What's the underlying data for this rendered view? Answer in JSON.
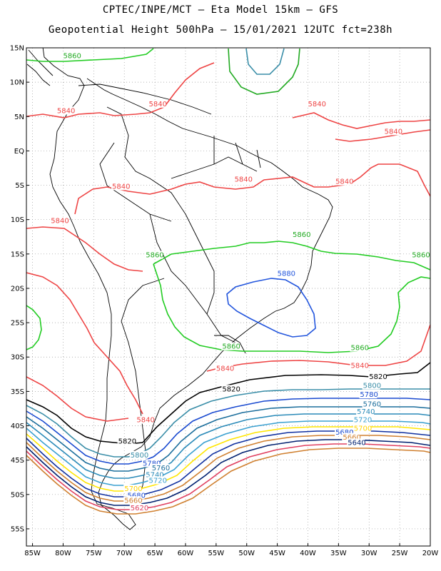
{
  "header": {
    "line1": "CPTEC/INPE/MCT –  Eta Model 15km – GFS",
    "line2": "Geopotential Height 500hPa – 15/01/2021 12UTC fct=238h"
  },
  "axes": {
    "lat_labels": [
      "15N",
      "10N",
      "5N",
      "EQ",
      "5S",
      "10S",
      "15S",
      "20S",
      "25S",
      "30S",
      "35S",
      "40S",
      "45S",
      "50S",
      "55S"
    ],
    "lon_labels": [
      "85W",
      "80W",
      "75W",
      "70W",
      "65W",
      "60W",
      "55W",
      "50W",
      "45W",
      "40W",
      "35W",
      "30W",
      "25W",
      "20W"
    ],
    "lat_range": [
      15,
      -57.5
    ],
    "lon_range": [
      -86,
      -20
    ],
    "grid": "dotted"
  },
  "colors": {
    "c5640": "#002070",
    "c5660": "#1030a0",
    "c5680": "#1a4ad0",
    "c5700": "#ffe600",
    "c5720": "#3aa0d0",
    "c5740": "#2a8ab8",
    "c5760": "#1c6e9c",
    "c5780": "#16608c",
    "c5800": "#3a8ea8",
    "c5820": "#000000",
    "c5840": "#ee4444",
    "c5860": "#22cc22",
    "c5880": "#2255dd",
    "c5600": "#d08030",
    "c5620": "#e04060"
  },
  "contour_labels": [
    {
      "id": "l5860a",
      "text": "5860",
      "lon": -80,
      "lat": 13.5,
      "color": "#22aa22"
    },
    {
      "id": "l5840a",
      "text": "5840",
      "lon": -81,
      "lat": 5.5,
      "color": "#ee4444"
    },
    {
      "id": "l5840b",
      "text": "5840",
      "lon": -66,
      "lat": 6.5,
      "color": "#ee4444"
    },
    {
      "id": "l5840c",
      "text": "5840",
      "lon": -40,
      "lat": 6.5,
      "color": "#ee4444"
    },
    {
      "id": "l5840d",
      "text": "5840",
      "lon": -27.5,
      "lat": 2.5,
      "color": "#ee4444"
    },
    {
      "id": "l5840e",
      "text": "5840",
      "lon": -72,
      "lat": -5.5,
      "color": "#ee4444"
    },
    {
      "id": "l5840f",
      "text": "5840",
      "lon": -52,
      "lat": -4.5,
      "color": "#ee4444"
    },
    {
      "id": "l5840g",
      "text": "5840",
      "lon": -35.5,
      "lat": -4.8,
      "color": "#ee4444"
    },
    {
      "id": "l5840h",
      "text": "5840",
      "lon": -82,
      "lat": -10.5,
      "color": "#ee4444"
    },
    {
      "id": "l5860b",
      "text": "5860",
      "lon": -42.5,
      "lat": -12.5,
      "color": "#22aa22"
    },
    {
      "id": "l5860c",
      "text": "5860",
      "lon": -66.5,
      "lat": -15.5,
      "color": "#22aa22"
    },
    {
      "id": "l5860d",
      "text": "5860",
      "lon": -23,
      "lat": -15.5,
      "color": "#22aa22"
    },
    {
      "id": "l5880",
      "text": "5880",
      "lon": -45,
      "lat": -18.2,
      "color": "#2255dd"
    },
    {
      "id": "l5860e",
      "text": "5860",
      "lon": -54,
      "lat": -28.8,
      "color": "#22aa22"
    },
    {
      "id": "l5860f",
      "text": "5860",
      "lon": -33,
      "lat": -29,
      "color": "#22aa22"
    },
    {
      "id": "l5840i",
      "text": "5840",
      "lon": -55,
      "lat": -32,
      "color": "#ee4444"
    },
    {
      "id": "l5840j",
      "text": "5840",
      "lon": -33,
      "lat": -31.6,
      "color": "#ee4444"
    },
    {
      "id": "l5820a",
      "text": "5820",
      "lon": -54,
      "lat": -35,
      "color": "#000000"
    },
    {
      "id": "l5820b",
      "text": "5820",
      "lon": -30,
      "lat": -33.2,
      "color": "#000000"
    },
    {
      "id": "l5800a",
      "text": "5800",
      "lon": -31,
      "lat": -34.5,
      "color": "#3a8ea8"
    },
    {
      "id": "l5780a",
      "text": "5780",
      "lon": -31.5,
      "lat": -35.8,
      "color": "#1a4ad0"
    },
    {
      "id": "l5760a",
      "text": "5760",
      "lon": -31,
      "lat": -37.2,
      "color": "#1c6e9c"
    },
    {
      "id": "l5740a",
      "text": "5740",
      "lon": -32,
      "lat": -38.3,
      "color": "#2a8ab8"
    },
    {
      "id": "l5720a",
      "text": "5720",
      "lon": -32.5,
      "lat": -39.5,
      "color": "#3aa0d0"
    },
    {
      "id": "l5700a",
      "text": "5700",
      "lon": -32.5,
      "lat": -40.7,
      "color": "#ffd400"
    },
    {
      "id": "l5680a",
      "text": "5680",
      "lon": -35.5,
      "lat": -41.3,
      "color": "#1a4ad0"
    },
    {
      "id": "l5660a",
      "text": "5660",
      "lon": -34.3,
      "lat": -42,
      "color": "#d08030"
    },
    {
      "id": "l5640a",
      "text": "5640",
      "lon": -33.5,
      "lat": -42.8,
      "color": "#002070"
    },
    {
      "id": "l5840k",
      "text": "5840",
      "lon": -68,
      "lat": -39.5,
      "color": "#ee4444"
    },
    {
      "id": "l5820c",
      "text": "5820",
      "lon": -71,
      "lat": -42.6,
      "color": "#000000"
    },
    {
      "id": "l5800b",
      "text": "5800",
      "lon": -69,
      "lat": -44.6,
      "color": "#3a8ea8"
    },
    {
      "id": "l5780b",
      "text": "5780",
      "lon": -67,
      "lat": -45.8,
      "color": "#1a4ad0"
    },
    {
      "id": "l5760b",
      "text": "5760",
      "lon": -65.5,
      "lat": -46.5,
      "color": "#1c6e9c"
    },
    {
      "id": "l5740b",
      "text": "5740",
      "lon": -66.5,
      "lat": -47.5,
      "color": "#2a8ab8"
    },
    {
      "id": "l5720b",
      "text": "5720",
      "lon": -66,
      "lat": -48.3,
      "color": "#3aa0d0"
    },
    {
      "id": "l5700b",
      "text": "5700",
      "lon": -70,
      "lat": -49.5,
      "color": "#ffd400"
    },
    {
      "id": "l5680b",
      "text": "5680",
      "lon": -69.5,
      "lat": -50.5,
      "color": "#1a4ad0"
    },
    {
      "id": "l5660b",
      "text": "5660",
      "lon": -70,
      "lat": -51.2,
      "color": "#d08030"
    },
    {
      "id": "l5620",
      "text": "5620",
      "lon": -69,
      "lat": -52.3,
      "color": "#e04060"
    }
  ]
}
